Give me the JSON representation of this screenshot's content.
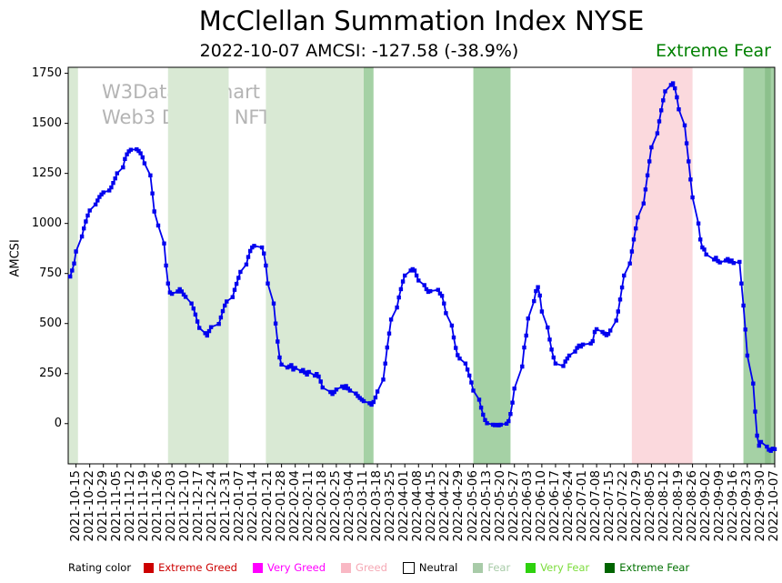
{
  "header": {
    "title": "McClellan Summation Index NYSE",
    "subtitle_date_info": "2022-10-07 AMCSI: -127.58 (-38.9%)",
    "subtitle_rating_label": "Extreme Fear",
    "subtitle_rating_color": "#008000"
  },
  "watermark": {
    "line1": "W3Data.io Chart",
    "line2": "Web3 Data & NFT Platform"
  },
  "legend": {
    "title": "Rating color",
    "items": [
      {
        "label": "Extreme Greed",
        "color": "#cc0000",
        "text_color": "#cc0000",
        "border": "none"
      },
      {
        "label": "Very Greed",
        "color": "#ff00ff",
        "text_color": "#ff00ff",
        "border": "none"
      },
      {
        "label": "Greed",
        "color": "#f9b8c4",
        "text_color": "#f5a8b4",
        "border": "none"
      },
      {
        "label": "Neutral",
        "color": "#ffffff",
        "text_color": "#000000",
        "border": "#000000"
      },
      {
        "label": "Fear",
        "color": "#a8cba8",
        "text_color": "#a8cba8",
        "border": "none"
      },
      {
        "label": "Very Fear",
        "color": "#2ed10e",
        "text_color": "#7cdc3c",
        "border": "none"
      },
      {
        "label": "Extreme Fear",
        "color": "#006400",
        "text_color": "#007000",
        "border": "none"
      }
    ]
  },
  "chart_data": {
    "type": "line",
    "series_name": "AMCSI",
    "title": "McClellan Summation Index NYSE",
    "ylabel": "AMCSI",
    "xlabel": "",
    "line_color": "#0000ee",
    "marker": "square",
    "grid": false,
    "x_range": [
      "2021-10-11",
      "2022-10-08"
    ],
    "y_range": [
      -201,
      1780
    ],
    "y_ticks": [
      0,
      250,
      500,
      750,
      1000,
      1250,
      1500,
      1750
    ],
    "x_tick_labels": [
      "2021-10-15",
      "2021-10-22",
      "2021-10-29",
      "2021-11-05",
      "2021-11-12",
      "2021-11-19",
      "2021-11-26",
      "2021-12-03",
      "2021-12-10",
      "2021-12-17",
      "2021-12-24",
      "2021-12-31",
      "2022-01-07",
      "2022-01-14",
      "2022-01-21",
      "2022-01-28",
      "2022-02-04",
      "2022-02-11",
      "2022-02-18",
      "2022-02-25",
      "2022-03-04",
      "2022-03-11",
      "2022-03-18",
      "2022-03-25",
      "2022-04-01",
      "2022-04-08",
      "2022-04-15",
      "2022-04-22",
      "2022-04-29",
      "2022-05-06",
      "2022-05-13",
      "2022-05-20",
      "2022-05-27",
      "2022-06-03",
      "2022-06-10",
      "2022-06-17",
      "2022-06-24",
      "2022-07-01",
      "2022-07-08",
      "2022-07-15",
      "2022-07-22",
      "2022-07-29",
      "2022-08-05",
      "2022-08-12",
      "2022-08-19",
      "2022-08-26",
      "2022-09-02",
      "2022-09-09",
      "2022-09-16",
      "2022-09-23",
      "2022-09-30",
      "2022-10-07"
    ],
    "bands": [
      {
        "start": "2021-10-11",
        "end": "2021-10-16",
        "color": "#d9e9d4",
        "rating": "Fear"
      },
      {
        "start": "2021-12-01",
        "end": "2022-01-01",
        "color": "#d9e9d4",
        "rating": "Fear"
      },
      {
        "start": "2022-01-20",
        "end": "2022-03-11",
        "color": "#d9e9d4",
        "rating": "Fear"
      },
      {
        "start": "2022-03-11",
        "end": "2022-03-16",
        "color": "#a5d1a5",
        "rating": "Extreme Fear"
      },
      {
        "start": "2022-05-06",
        "end": "2022-05-25",
        "color": "#a5d1a5",
        "rating": "Extreme Fear"
      },
      {
        "start": "2022-07-26",
        "end": "2022-08-26",
        "color": "#fbd9dd",
        "rating": "Greed"
      },
      {
        "start": "2022-09-21",
        "end": "2022-10-08",
        "color": "#a5d1a5",
        "rating": "Extreme Fear"
      },
      {
        "start": "2022-10-02",
        "end": "2022-10-05",
        "color": "#8cc08c",
        "rating": "Extreme Fear"
      }
    ],
    "points": [
      [
        "2021-10-12",
        735
      ],
      [
        "2021-10-13",
        765
      ],
      [
        "2021-10-14",
        800
      ],
      [
        "2021-10-15",
        860
      ],
      [
        "2021-10-18",
        935
      ],
      [
        "2021-10-19",
        975
      ],
      [
        "2021-10-20",
        1010
      ],
      [
        "2021-10-21",
        1040
      ],
      [
        "2021-10-22",
        1065
      ],
      [
        "2021-10-25",
        1095
      ],
      [
        "2021-10-26",
        1115
      ],
      [
        "2021-10-27",
        1132
      ],
      [
        "2021-10-28",
        1145
      ],
      [
        "2021-10-29",
        1155
      ],
      [
        "2021-11-01",
        1165
      ],
      [
        "2021-11-02",
        1180
      ],
      [
        "2021-11-03",
        1202
      ],
      [
        "2021-11-04",
        1225
      ],
      [
        "2021-11-05",
        1250
      ],
      [
        "2021-11-08",
        1280
      ],
      [
        "2021-11-09",
        1322
      ],
      [
        "2021-11-10",
        1345
      ],
      [
        "2021-11-11",
        1360
      ],
      [
        "2021-11-12",
        1368
      ],
      [
        "2021-11-15",
        1370
      ],
      [
        "2021-11-16",
        1362
      ],
      [
        "2021-11-17",
        1350
      ],
      [
        "2021-11-18",
        1330
      ],
      [
        "2021-11-19",
        1300
      ],
      [
        "2021-11-22",
        1240
      ],
      [
        "2021-11-23",
        1150
      ],
      [
        "2021-11-24",
        1060
      ],
      [
        "2021-11-26",
        990
      ],
      [
        "2021-11-29",
        900
      ],
      [
        "2021-11-30",
        790
      ],
      [
        "2021-12-01",
        700
      ],
      [
        "2021-12-02",
        655
      ],
      [
        "2021-12-03",
        648
      ],
      [
        "2021-12-06",
        660
      ],
      [
        "2021-12-07",
        672
      ],
      [
        "2021-12-08",
        660
      ],
      [
        "2021-12-09",
        645
      ],
      [
        "2021-12-10",
        633
      ],
      [
        "2021-12-13",
        600
      ],
      [
        "2021-12-14",
        575
      ],
      [
        "2021-12-15",
        545
      ],
      [
        "2021-12-16",
        510
      ],
      [
        "2021-12-17",
        478
      ],
      [
        "2021-12-20",
        452
      ],
      [
        "2021-12-21",
        440
      ],
      [
        "2021-12-22",
        462
      ],
      [
        "2021-12-23",
        482
      ],
      [
        "2021-12-27",
        498
      ],
      [
        "2021-12-28",
        530
      ],
      [
        "2021-12-29",
        562
      ],
      [
        "2021-12-30",
        590
      ],
      [
        "2021-12-31",
        610
      ],
      [
        "2022-01-03",
        632
      ],
      [
        "2022-01-04",
        668
      ],
      [
        "2022-01-05",
        698
      ],
      [
        "2022-01-06",
        728
      ],
      [
        "2022-01-07",
        758
      ],
      [
        "2022-01-10",
        795
      ],
      [
        "2022-01-11",
        832
      ],
      [
        "2022-01-12",
        862
      ],
      [
        "2022-01-13",
        880
      ],
      [
        "2022-01-14",
        888
      ],
      [
        "2022-01-18",
        880
      ],
      [
        "2022-01-19",
        850
      ],
      [
        "2022-01-20",
        790
      ],
      [
        "2022-01-21",
        700
      ],
      [
        "2022-01-24",
        600
      ],
      [
        "2022-01-25",
        500
      ],
      [
        "2022-01-26",
        410
      ],
      [
        "2022-01-27",
        330
      ],
      [
        "2022-01-28",
        295
      ],
      [
        "2022-01-31",
        280
      ],
      [
        "2022-02-01",
        285
      ],
      [
        "2022-02-02",
        292
      ],
      [
        "2022-02-03",
        270
      ],
      [
        "2022-02-04",
        278
      ],
      [
        "2022-02-07",
        262
      ],
      [
        "2022-02-08",
        268
      ],
      [
        "2022-02-09",
        255
      ],
      [
        "2022-02-10",
        245
      ],
      [
        "2022-02-11",
        258
      ],
      [
        "2022-02-14",
        240
      ],
      [
        "2022-02-15",
        248
      ],
      [
        "2022-02-16",
        235
      ],
      [
        "2022-02-17",
        210
      ],
      [
        "2022-02-18",
        180
      ],
      [
        "2022-02-22",
        158
      ],
      [
        "2022-02-23",
        148
      ],
      [
        "2022-02-24",
        158
      ],
      [
        "2022-02-25",
        170
      ],
      [
        "2022-02-28",
        185
      ],
      [
        "2022-03-01",
        178
      ],
      [
        "2022-03-02",
        188
      ],
      [
        "2022-03-03",
        175
      ],
      [
        "2022-03-04",
        165
      ],
      [
        "2022-03-07",
        150
      ],
      [
        "2022-03-08",
        138
      ],
      [
        "2022-03-09",
        128
      ],
      [
        "2022-03-10",
        120
      ],
      [
        "2022-03-11",
        112
      ],
      [
        "2022-03-14",
        102
      ],
      [
        "2022-03-15",
        95
      ],
      [
        "2022-03-16",
        108
      ],
      [
        "2022-03-17",
        130
      ],
      [
        "2022-03-18",
        160
      ],
      [
        "2022-03-21",
        220
      ],
      [
        "2022-03-22",
        300
      ],
      [
        "2022-03-23",
        380
      ],
      [
        "2022-03-24",
        450
      ],
      [
        "2022-03-25",
        520
      ],
      [
        "2022-03-28",
        580
      ],
      [
        "2022-03-29",
        630
      ],
      [
        "2022-03-30",
        672
      ],
      [
        "2022-03-31",
        710
      ],
      [
        "2022-04-01",
        740
      ],
      [
        "2022-04-04",
        765
      ],
      [
        "2022-04-05",
        772
      ],
      [
        "2022-04-06",
        765
      ],
      [
        "2022-04-07",
        740
      ],
      [
        "2022-04-08",
        715
      ],
      [
        "2022-04-11",
        692
      ],
      [
        "2022-04-12",
        672
      ],
      [
        "2022-04-13",
        658
      ],
      [
        "2022-04-14",
        662
      ],
      [
        "2022-04-18",
        668
      ],
      [
        "2022-04-19",
        650
      ],
      [
        "2022-04-20",
        638
      ],
      [
        "2022-04-21",
        600
      ],
      [
        "2022-04-22",
        552
      ],
      [
        "2022-04-25",
        490
      ],
      [
        "2022-04-26",
        430
      ],
      [
        "2022-04-27",
        378
      ],
      [
        "2022-04-28",
        342
      ],
      [
        "2022-04-29",
        325
      ],
      [
        "2022-05-02",
        300
      ],
      [
        "2022-05-03",
        270
      ],
      [
        "2022-05-04",
        240
      ],
      [
        "2022-05-05",
        205
      ],
      [
        "2022-05-06",
        165
      ],
      [
        "2022-05-09",
        120
      ],
      [
        "2022-05-10",
        80
      ],
      [
        "2022-05-11",
        45
      ],
      [
        "2022-05-12",
        18
      ],
      [
        "2022-05-13",
        2
      ],
      [
        "2022-05-16",
        -5
      ],
      [
        "2022-05-17",
        -8
      ],
      [
        "2022-05-18",
        -6
      ],
      [
        "2022-05-19",
        -9
      ],
      [
        "2022-05-20",
        -5
      ],
      [
        "2022-05-23",
        0
      ],
      [
        "2022-05-24",
        12
      ],
      [
        "2022-05-25",
        48
      ],
      [
        "2022-05-26",
        105
      ],
      [
        "2022-05-27",
        175
      ],
      [
        "2022-05-31",
        285
      ],
      [
        "2022-06-01",
        380
      ],
      [
        "2022-06-02",
        440
      ],
      [
        "2022-06-03",
        525
      ],
      [
        "2022-06-06",
        612
      ],
      [
        "2022-06-07",
        662
      ],
      [
        "2022-06-08",
        682
      ],
      [
        "2022-06-09",
        640
      ],
      [
        "2022-06-10",
        560
      ],
      [
        "2022-06-13",
        480
      ],
      [
        "2022-06-14",
        420
      ],
      [
        "2022-06-15",
        370
      ],
      [
        "2022-06-16",
        330
      ],
      [
        "2022-06-17",
        300
      ],
      [
        "2022-06-21",
        288
      ],
      [
        "2022-06-22",
        310
      ],
      [
        "2022-06-23",
        325
      ],
      [
        "2022-06-24",
        340
      ],
      [
        "2022-06-27",
        360
      ],
      [
        "2022-06-28",
        378
      ],
      [
        "2022-06-29",
        390
      ],
      [
        "2022-06-30",
        385
      ],
      [
        "2022-07-01",
        395
      ],
      [
        "2022-07-05",
        400
      ],
      [
        "2022-07-06",
        412
      ],
      [
        "2022-07-07",
        458
      ],
      [
        "2022-07-08",
        472
      ],
      [
        "2022-07-11",
        458
      ],
      [
        "2022-07-12",
        450
      ],
      [
        "2022-07-13",
        442
      ],
      [
        "2022-07-14",
        448
      ],
      [
        "2022-07-15",
        465
      ],
      [
        "2022-07-18",
        515
      ],
      [
        "2022-07-19",
        560
      ],
      [
        "2022-07-20",
        620
      ],
      [
        "2022-07-21",
        680
      ],
      [
        "2022-07-22",
        740
      ],
      [
        "2022-07-25",
        800
      ],
      [
        "2022-07-26",
        860
      ],
      [
        "2022-07-27",
        920
      ],
      [
        "2022-07-28",
        975
      ],
      [
        "2022-07-29",
        1030
      ],
      [
        "2022-08-01",
        1100
      ],
      [
        "2022-08-02",
        1170
      ],
      [
        "2022-08-03",
        1240
      ],
      [
        "2022-08-04",
        1310
      ],
      [
        "2022-08-05",
        1380
      ],
      [
        "2022-08-08",
        1450
      ],
      [
        "2022-08-09",
        1510
      ],
      [
        "2022-08-10",
        1565
      ],
      [
        "2022-08-11",
        1615
      ],
      [
        "2022-08-12",
        1660
      ],
      [
        "2022-08-15",
        1692
      ],
      [
        "2022-08-16",
        1700
      ],
      [
        "2022-08-17",
        1675
      ],
      [
        "2022-08-18",
        1630
      ],
      [
        "2022-08-19",
        1570
      ],
      [
        "2022-08-22",
        1490
      ],
      [
        "2022-08-23",
        1400
      ],
      [
        "2022-08-24",
        1310
      ],
      [
        "2022-08-25",
        1220
      ],
      [
        "2022-08-26",
        1130
      ],
      [
        "2022-08-29",
        1000
      ],
      [
        "2022-08-30",
        920
      ],
      [
        "2022-08-31",
        880
      ],
      [
        "2022-09-01",
        870
      ],
      [
        "2022-09-02",
        845
      ],
      [
        "2022-09-06",
        820
      ],
      [
        "2022-09-07",
        828
      ],
      [
        "2022-09-08",
        812
      ],
      [
        "2022-09-09",
        805
      ],
      [
        "2022-09-12",
        815
      ],
      [
        "2022-09-13",
        822
      ],
      [
        "2022-09-14",
        810
      ],
      [
        "2022-09-15",
        815
      ],
      [
        "2022-09-16",
        802
      ],
      [
        "2022-09-19",
        808
      ],
      [
        "2022-09-20",
        700
      ],
      [
        "2022-09-21",
        590
      ],
      [
        "2022-09-22",
        470
      ],
      [
        "2022-09-23",
        340
      ],
      [
        "2022-09-26",
        200
      ],
      [
        "2022-09-27",
        60
      ],
      [
        "2022-09-28",
        -60
      ],
      [
        "2022-09-29",
        -110
      ],
      [
        "2022-09-30",
        -92
      ],
      [
        "2022-10-03",
        -115
      ],
      [
        "2022-10-04",
        -130
      ],
      [
        "2022-10-05",
        -136
      ],
      [
        "2022-10-06",
        -125
      ],
      [
        "2022-10-07",
        -127.58
      ]
    ]
  }
}
